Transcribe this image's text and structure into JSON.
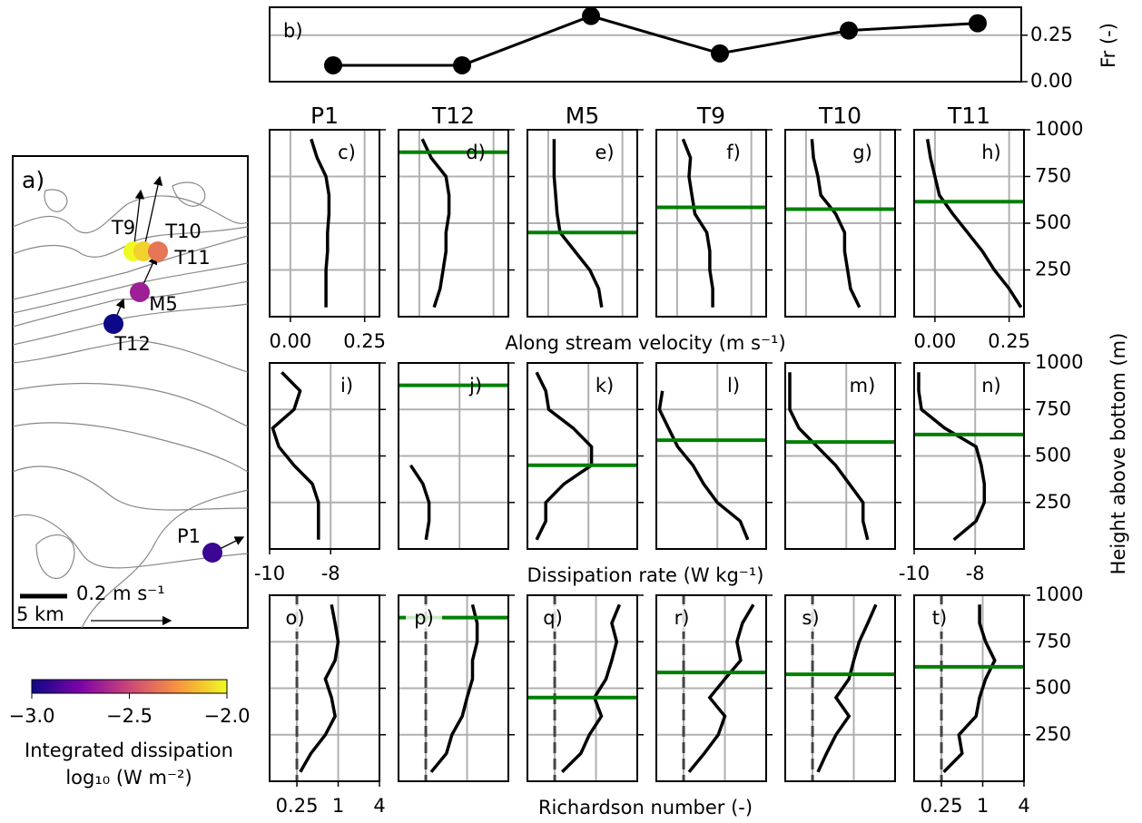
{
  "chart_data": [
    {
      "type": "map",
      "label": "a)",
      "stations": [
        "P1",
        "T12",
        "M5",
        "T9",
        "T10",
        "T11"
      ],
      "integrated_dissipation": [
        -2.9,
        -3.0,
        -2.65,
        -2.0,
        -2.1,
        -2.35
      ],
      "scale_label": "0.2 m s⁻¹",
      "distance_label": "5 km",
      "colorbar": {
        "label": "Integrated dissipation",
        "units": "log₁₀ (W m⁻²)",
        "lim": [
          -3,
          -2
        ],
        "ticks": [
          {
            "value": -3,
            "label": "−3.0"
          },
          {
            "value": -2.5,
            "label": "−2.5"
          },
          {
            "value": -2,
            "label": "−2.0"
          }
        ]
      }
    },
    {
      "type": "line",
      "label": "b)",
      "ylabel": "Fr (-)",
      "values": [
        0.088,
        0.088,
        0.353,
        0.152,
        0.275,
        0.314
      ],
      "color": "#000000",
      "ylim": [
        0,
        0.4
      ],
      "yticks": [
        {
          "value": 0,
          "label": "0.00"
        },
        0.25
      ],
      "grid": true
    },
    {
      "type": "profile",
      "xlabel": "Along stream velocity (m s⁻¹)",
      "panel_labels": [
        "c)",
        "d)",
        "e)",
        "f)",
        "g)",
        "h)"
      ],
      "heights": [
        50,
        150,
        250,
        350,
        450,
        550,
        650,
        750,
        850,
        950
      ],
      "series": [
        {
          "name": "P1",
          "values": [
            0.12,
            0.12,
            0.12,
            0.125,
            0.125,
            0.13,
            0.13,
            0.12,
            0.09,
            0.07
          ]
        },
        {
          "name": "T12",
          "values": [
            0.05,
            0.07,
            0.08,
            0.09,
            0.09,
            0.1,
            0.1,
            0.09,
            0.04,
            0.01
          ]
        },
        {
          "name": "M5",
          "values": [
            0.18,
            0.17,
            0.14,
            0.09,
            0.04,
            0.03,
            0.025,
            0.02,
            0.02,
            0.02
          ]
        },
        {
          "name": "T9",
          "values": [
            0.12,
            0.12,
            0.11,
            0.11,
            0.1,
            0.06,
            0.05,
            0.04,
            0.045,
            0.02
          ]
        },
        {
          "name": "T10",
          "values": [
            0.18,
            0.15,
            0.14,
            0.13,
            0.13,
            0.1,
            0.05,
            0.04,
            0.025,
            0.02
          ]
        },
        {
          "name": "T11",
          "values": [
            0.29,
            0.25,
            0.2,
            0.16,
            0.11,
            0.06,
            0.015,
            0.0,
            -0.015,
            -0.025
          ]
        }
      ],
      "mixed_layer_heights": [
        null,
        880,
        450,
        585,
        575,
        615
      ],
      "mixed_layer_color": "#008000",
      "xlim": [
        -0.07,
        0.3
      ],
      "xticks": [
        {
          "value": 0,
          "label": "0.00"
        },
        0.25
      ],
      "ylabel": "Height above bottom (m)",
      "ylim": [
        0,
        1000
      ],
      "yticks": [
        250,
        500,
        750,
        1000
      ],
      "grid": true
    },
    {
      "type": "profile",
      "xlabel": "Dissipation rate (W kg⁻¹)",
      "panel_labels": [
        "i)",
        "j)",
        "k)",
        "l)",
        "m)",
        "n)"
      ],
      "heights": [
        50,
        150,
        250,
        350,
        450,
        550,
        650,
        750,
        850,
        950
      ],
      "series": [
        {
          "values": [
            -8.4,
            -8.4,
            -8.4,
            -8.6,
            -9.2,
            -9.7,
            -9.9,
            -9.2,
            -9.0,
            -9.6
          ]
        },
        {
          "values": [
            -9.1,
            -9.0,
            -9.0,
            -9.2,
            -9.6,
            null,
            null,
            null,
            null,
            null
          ]
        },
        {
          "values": [
            -9.7,
            -9.4,
            -9.4,
            -8.8,
            -7.9,
            -7.9,
            -8.5,
            -9.3,
            -9.4,
            -9.7
          ]
        },
        {
          "values": [
            -7.0,
            -7.25,
            -8.0,
            -8.45,
            -8.8,
            -9.3,
            -9.6,
            -9.9,
            -9.8,
            null
          ]
        },
        {
          "values": [
            -7.3,
            -7.45,
            -7.45,
            -7.9,
            -8.35,
            -8.95,
            -9.55,
            -9.85,
            -9.85,
            -9.85
          ]
        },
        {
          "values": [
            -8.7,
            -7.97,
            -7.7,
            -7.7,
            -7.8,
            -7.97,
            -9.0,
            -9.76,
            -9.85,
            -9.85
          ]
        }
      ],
      "xlim": [
        -10,
        -6.4
      ],
      "xticks": [
        -10,
        -8
      ],
      "ylim": [
        0,
        1000
      ],
      "yticks": [
        250,
        500,
        750,
        1000
      ],
      "grid": true
    },
    {
      "type": "profile",
      "xlabel": "Richardson number (-)",
      "xscale": "log",
      "panel_labels": [
        "o)",
        "p)",
        "q)",
        "r)",
        "s)",
        "t)"
      ],
      "heights": [
        50,
        150,
        250,
        350,
        450,
        550,
        650,
        750,
        850,
        950
      ],
      "series": [
        {
          "values": [
            0.28,
            0.4,
            0.65,
            0.9,
            0.8,
            0.65,
            0.9,
            1.0,
            0.9,
            0.8
          ]
        },
        {
          "values": [
            0.3,
            0.5,
            0.6,
            0.85,
            1.0,
            1.2,
            1.2,
            1.4,
            1.4,
            1.2
          ]
        },
        {
          "values": [
            0.32,
            0.6,
            0.8,
            1.2,
            0.95,
            1.4,
            1.7,
            2.0,
            1.7,
            2.2
          ]
        },
        {
          "values": [
            0.3,
            0.5,
            0.8,
            1.0,
            0.6,
            1.0,
            1.7,
            1.5,
            1.8,
            2.6
          ]
        },
        {
          "values": [
            0.3,
            0.4,
            0.55,
            0.85,
            0.55,
            0.85,
            1.0,
            1.2,
            1.6,
            2.1
          ]
        },
        {
          "values": [
            0.27,
            0.5,
            0.45,
            0.8,
            0.9,
            1.1,
            1.5,
            1.1,
            0.9,
            0.9
          ]
        }
      ],
      "critical_value": 0.25,
      "xlim": [
        0.1,
        4
      ],
      "xticks": [
        0.25,
        1,
        4
      ],
      "ylim": [
        0,
        1000
      ],
      "yticks": [
        250,
        500,
        750,
        1000
      ],
      "grid": true
    }
  ]
}
